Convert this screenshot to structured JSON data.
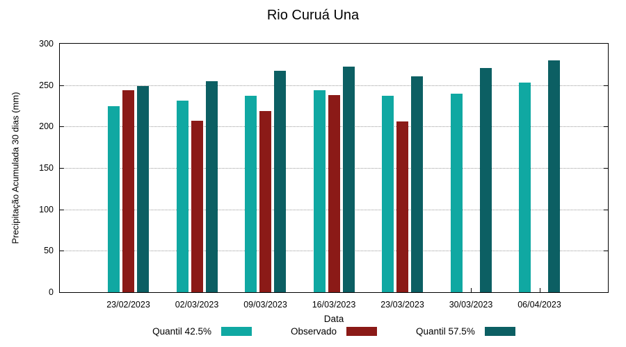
{
  "chart_data": {
    "type": "bar",
    "title": "Rio Curuá Una",
    "xlabel": "Data",
    "ylabel": "Precipitação Acumulada 30 dias (mm)",
    "categories": [
      "23/02/2023",
      "02/03/2023",
      "09/03/2023",
      "16/03/2023",
      "23/03/2023",
      "30/03/2023",
      "06/04/2023"
    ],
    "series": [
      {
        "name": "Quantil 42.5%",
        "color": "#10A8A2",
        "values": [
          225,
          231,
          237,
          244,
          237,
          240,
          253
        ]
      },
      {
        "name": "Observado",
        "color": "#8B1A17",
        "values": [
          244,
          207,
          219,
          238,
          206,
          null,
          null
        ]
      },
      {
        "name": "Quantil 57.5%",
        "color": "#0C5F63",
        "values": [
          249,
          255,
          267,
          272,
          261,
          271,
          280
        ]
      }
    ],
    "ylim": [
      0,
      300
    ],
    "ytick_step": 50,
    "yticks": [
      0,
      50,
      100,
      150,
      200,
      250,
      300
    ],
    "grid": "dotted horizontal gridlines",
    "legend_position": "bottom"
  }
}
